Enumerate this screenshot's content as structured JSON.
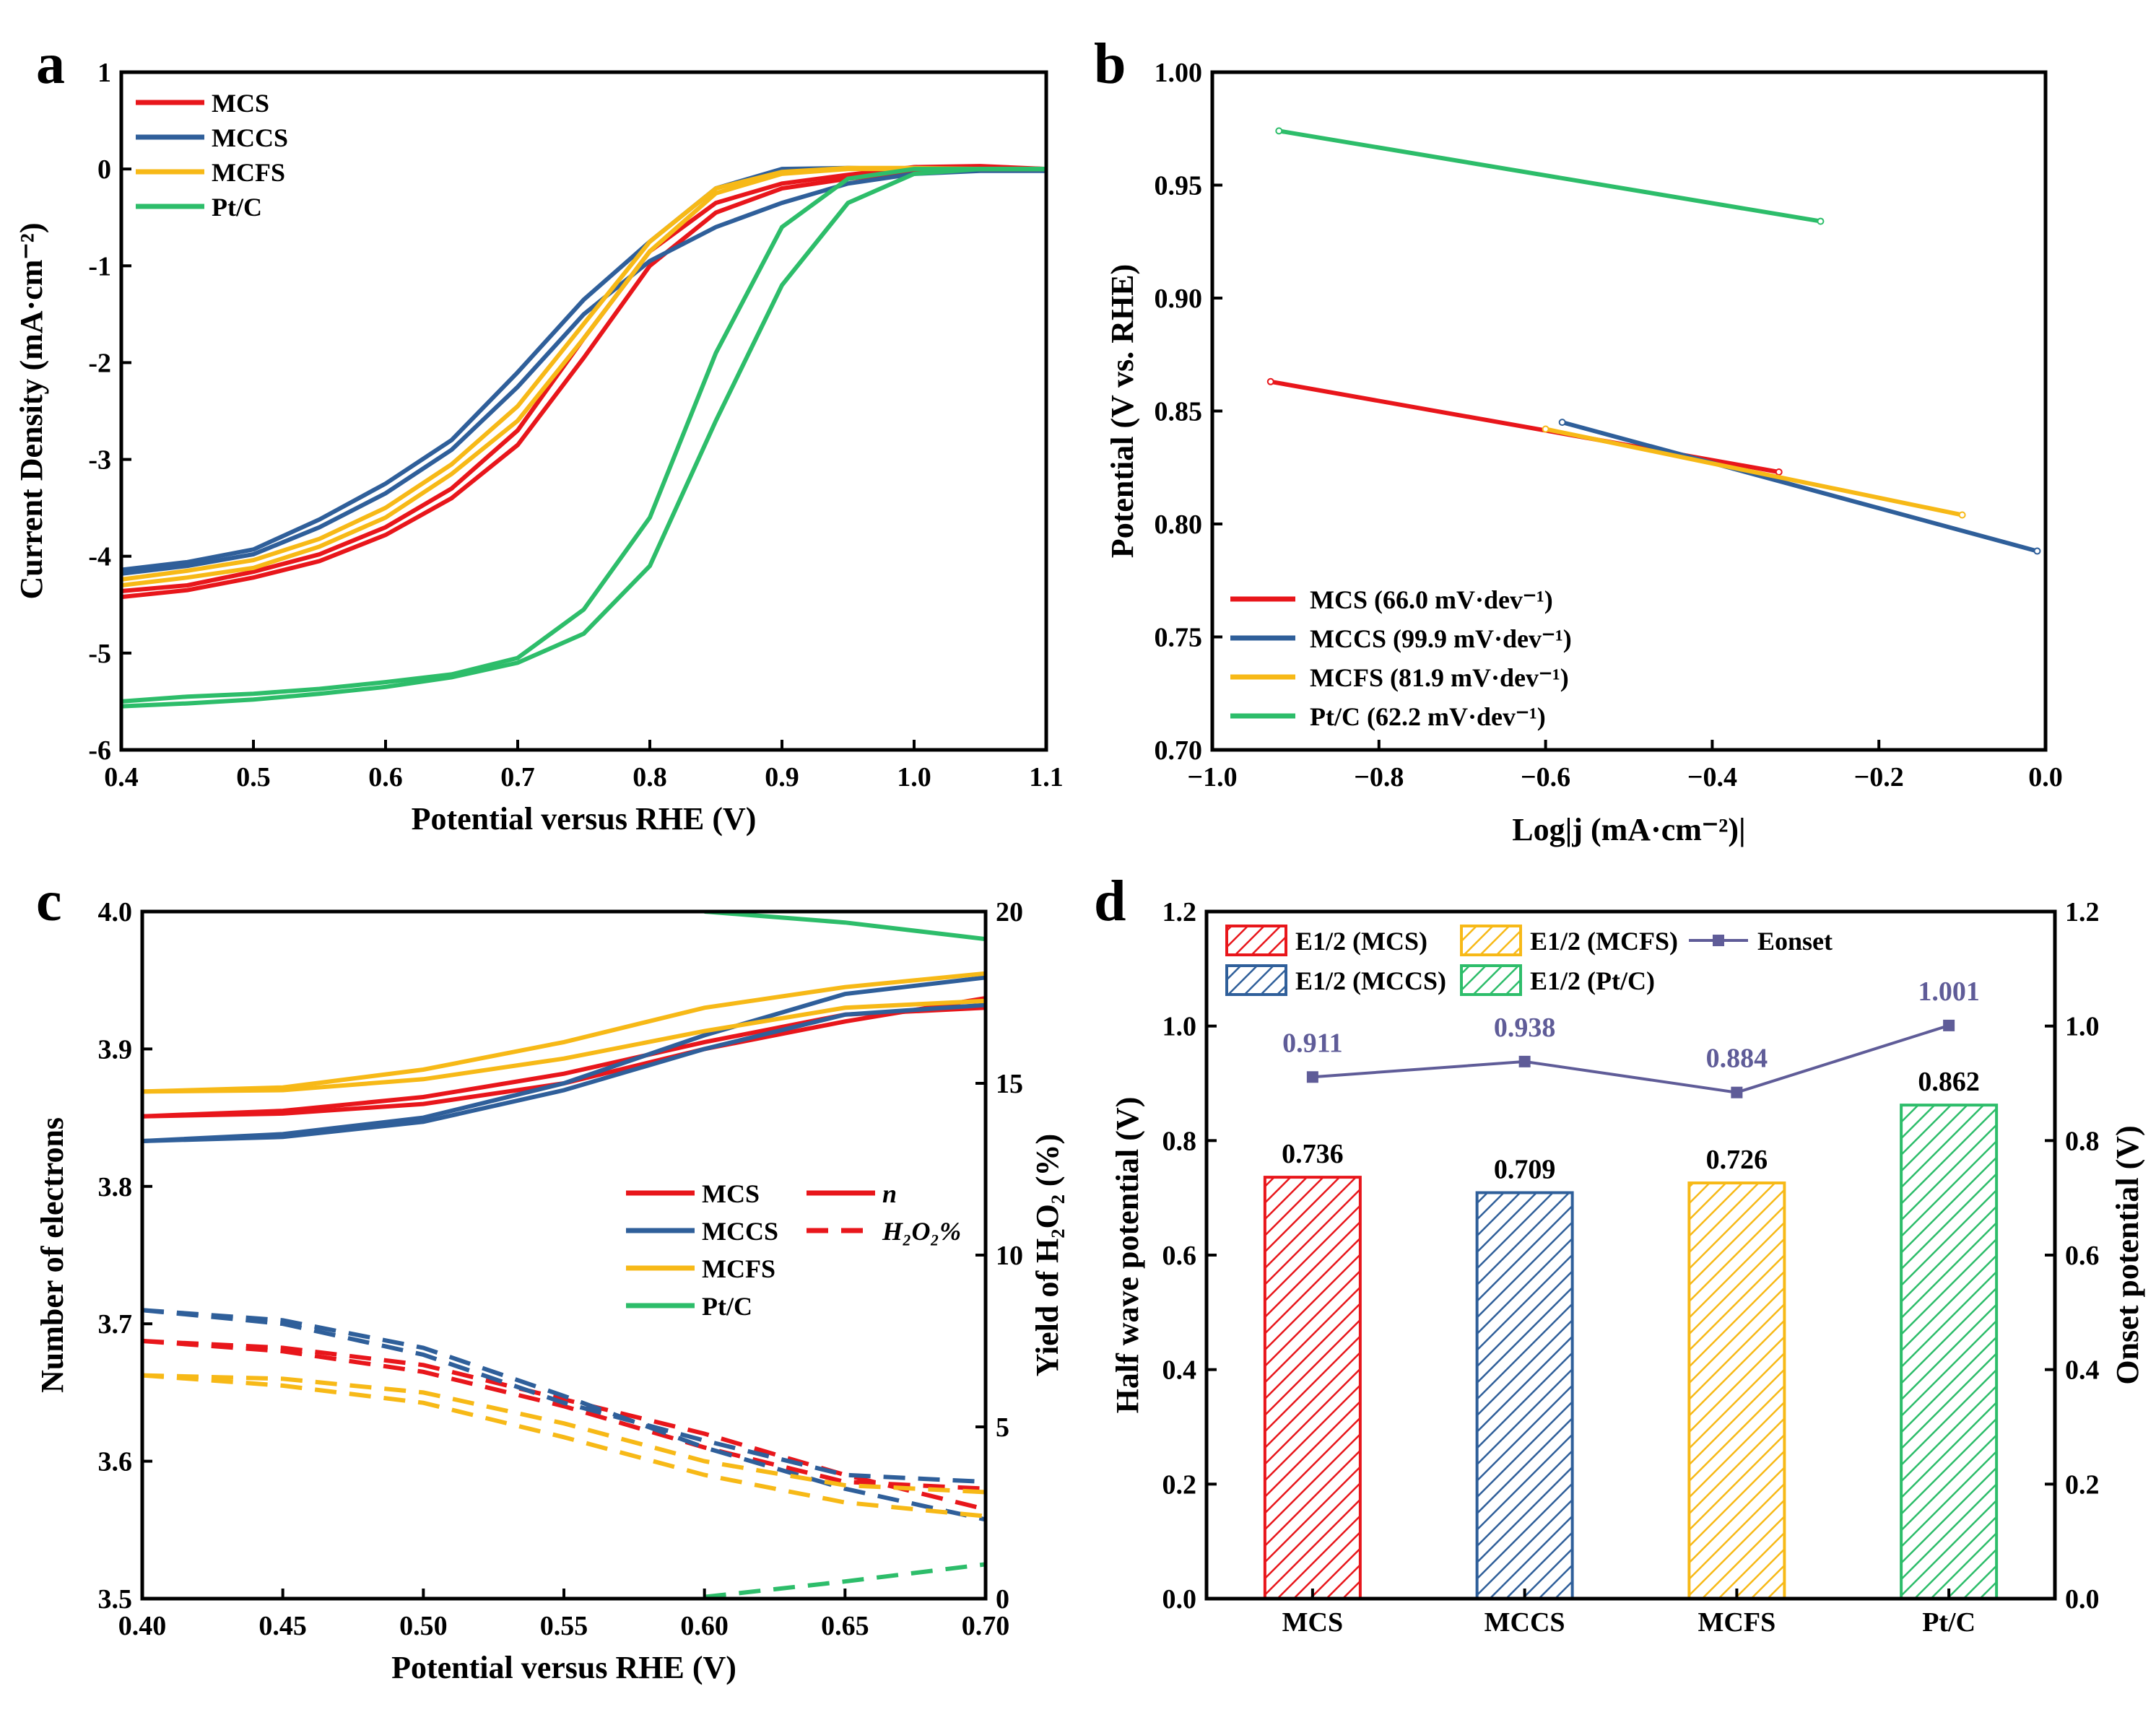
{
  "colors": {
    "MCS": "#e8161b",
    "MCCS": "#2f5f9a",
    "MCFS": "#f7b917",
    "PtC": "#2dbd6a",
    "onset": "#5f5c98"
  },
  "chart_data": [
    {
      "panel": "a",
      "type": "line",
      "xlabel": "Potential versus RHE (V)",
      "ylabel": "Current Density (mA·cm⁻²)",
      "xlim": [
        0.4,
        1.1
      ],
      "ylim": [
        -6,
        1
      ],
      "xticks": [
        "0.4",
        "0.5",
        "0.6",
        "0.7",
        "0.8",
        "0.9",
        "1.0",
        "1.1"
      ],
      "yticks": [
        "-6",
        "-5",
        "-4",
        "-3",
        "-2",
        "-1",
        "0",
        "1"
      ],
      "legend": "top-left",
      "series": [
        {
          "name": "MCS",
          "color": "MCS",
          "x": [
            0.4,
            0.45,
            0.5,
            0.55,
            0.6,
            0.65,
            0.7,
            0.75,
            0.8,
            0.85,
            0.9,
            0.95,
            1.0,
            1.05,
            1.1
          ],
          "y": [
            -4.42,
            -4.35,
            -4.22,
            -4.05,
            -3.78,
            -3.4,
            -2.85,
            -1.95,
            -1.0,
            -0.45,
            -0.2,
            -0.1,
            -0.03,
            0.02,
            0
          ],
          "y2": [
            -4.36,
            -4.3,
            -4.16,
            -3.98,
            -3.7,
            -3.3,
            -2.7,
            -1.75,
            -0.85,
            -0.35,
            -0.15,
            -0.06,
            0.02,
            0.03,
            0
          ]
        },
        {
          "name": "MCCS",
          "color": "MCCS",
          "x": [
            0.4,
            0.45,
            0.5,
            0.55,
            0.6,
            0.65,
            0.7,
            0.75,
            0.8,
            0.85,
            0.9,
            0.95,
            1.0,
            1.05,
            1.1
          ],
          "y": [
            -4.18,
            -4.1,
            -3.98,
            -3.7,
            -3.35,
            -2.9,
            -2.25,
            -1.5,
            -0.95,
            -0.6,
            -0.35,
            -0.15,
            -0.05,
            -0.02,
            -0.02
          ],
          "y2": [
            -4.14,
            -4.06,
            -3.93,
            -3.62,
            -3.25,
            -2.8,
            -2.1,
            -1.35,
            -0.75,
            -0.2,
            0,
            0.01,
            0,
            0,
            -0.02
          ]
        },
        {
          "name": "MCFS",
          "color": "MCFS",
          "x": [
            0.4,
            0.45,
            0.5,
            0.55,
            0.6,
            0.65,
            0.7,
            0.75,
            0.8,
            0.85,
            0.9,
            0.95,
            1.0,
            1.05,
            1.1
          ],
          "y": [
            -4.3,
            -4.22,
            -4.12,
            -3.9,
            -3.6,
            -3.15,
            -2.6,
            -1.75,
            -0.85,
            -0.25,
            -0.05,
            0,
            0,
            0,
            0
          ],
          "y2": [
            -4.24,
            -4.15,
            -4.04,
            -3.82,
            -3.5,
            -3.05,
            -2.45,
            -1.6,
            -0.75,
            -0.2,
            -0.03,
            0.01,
            0.01,
            0,
            0
          ]
        },
        {
          "name": "Pt/C",
          "color": "PtC",
          "x": [
            0.4,
            0.45,
            0.5,
            0.55,
            0.6,
            0.65,
            0.7,
            0.75,
            0.8,
            0.85,
            0.9,
            0.95,
            1.0,
            1.05,
            1.1
          ],
          "y": [
            -5.55,
            -5.52,
            -5.48,
            -5.42,
            -5.35,
            -5.25,
            -5.1,
            -4.8,
            -4.1,
            -2.6,
            -1.2,
            -0.35,
            -0.05,
            0,
            0
          ],
          "y2": [
            -5.5,
            -5.45,
            -5.42,
            -5.37,
            -5.3,
            -5.22,
            -5.05,
            -4.55,
            -3.6,
            -1.9,
            -0.6,
            -0.1,
            0,
            0,
            0
          ]
        }
      ]
    },
    {
      "panel": "b",
      "type": "line",
      "xlabel": "Log|j (mA·cm⁻²)|",
      "ylabel": "Potential (V vs. RHE)",
      "xlim": [
        -1.0,
        0.0
      ],
      "ylim": [
        0.7,
        1.0
      ],
      "xticks": [
        "−1.0",
        "−0.8",
        "−0.6",
        "−0.4",
        "−0.2",
        "0.0"
      ],
      "yticks": [
        "0.70",
        "0.75",
        "0.80",
        "0.85",
        "0.90",
        "0.95",
        "1.00"
      ],
      "legend": "bottom-left",
      "series": [
        {
          "name": "MCS (66.0 mV·dev⁻¹)",
          "color": "MCS",
          "x": [
            -0.93,
            -0.32
          ],
          "y": [
            0.863,
            0.823
          ]
        },
        {
          "name": "MCCS (99.9 mV·dev⁻¹)",
          "color": "MCCS",
          "x": [
            -0.58,
            -0.01
          ],
          "y": [
            0.845,
            0.788
          ]
        },
        {
          "name": "MCFS (81.9 mV·dev⁻¹)",
          "color": "MCFS",
          "x": [
            -0.6,
            -0.1
          ],
          "y": [
            0.842,
            0.804
          ]
        },
        {
          "name": "Pt/C (62.2 mV·dev⁻¹)",
          "color": "PtC",
          "x": [
            -0.92,
            -0.27
          ],
          "y": [
            0.974,
            0.934
          ]
        }
      ]
    },
    {
      "panel": "c",
      "type": "line",
      "xlabel": "Potential versus RHE (V)",
      "ylabel": "Number of electrons",
      "y2label": "Yield of H₂O₂ (%)",
      "xlim": [
        0.4,
        0.7
      ],
      "ylim": [
        3.5,
        4.0
      ],
      "y2lim": [
        0,
        20
      ],
      "xticks": [
        "0.40",
        "0.45",
        "0.50",
        "0.55",
        "0.60",
        "0.65",
        "0.70"
      ],
      "yticks": [
        "3.5",
        "3.6",
        "3.7",
        "3.8",
        "3.9",
        "4.0"
      ],
      "y2ticks": [
        "0",
        "5",
        "10",
        "15",
        "20"
      ],
      "legend": "center-right",
      "legend_styles": [
        "n",
        "H₂O₂%"
      ],
      "series": [
        {
          "name": "MCS",
          "color": "MCS",
          "x": [
            0.4,
            0.45,
            0.5,
            0.55,
            0.6,
            0.65,
            0.7
          ],
          "n": [
            3.851,
            3.853,
            3.86,
            3.875,
            3.9,
            3.92,
            3.937
          ],
          "n2": [
            3.851,
            3.855,
            3.865,
            3.882,
            3.905,
            3.925,
            3.93
          ],
          "h2o2": [
            7.5,
            7.3,
            6.8,
            5.8,
            4.8,
            3.6,
            2.6
          ],
          "h2o22": [
            7.5,
            7.2,
            6.6,
            5.6,
            4.4,
            3.4,
            3.2
          ]
        },
        {
          "name": "MCCS",
          "color": "MCCS",
          "x": [
            0.4,
            0.45,
            0.5,
            0.55,
            0.6,
            0.65,
            0.7
          ],
          "n": [
            3.833,
            3.838,
            3.85,
            3.875,
            3.91,
            3.94,
            3.952
          ],
          "n2": [
            3.833,
            3.836,
            3.847,
            3.87,
            3.9,
            3.925,
            3.932
          ],
          "h2o2": [
            8.4,
            8.1,
            7.3,
            5.9,
            4.4,
            3.2,
            2.3
          ],
          "h2o22": [
            8.4,
            8.0,
            7.1,
            5.7,
            4.6,
            3.6,
            3.4
          ]
        },
        {
          "name": "MCFS",
          "color": "MCFS",
          "x": [
            0.4,
            0.45,
            0.5,
            0.55,
            0.6,
            0.65,
            0.7
          ],
          "n": [
            3.869,
            3.872,
            3.885,
            3.905,
            3.93,
            3.945,
            3.955
          ],
          "n2": [
            3.869,
            3.87,
            3.878,
            3.893,
            3.913,
            3.93,
            3.935
          ],
          "h2o2": [
            6.5,
            6.2,
            5.7,
            4.7,
            3.6,
            2.8,
            2.4
          ],
          "h2o22": [
            6.5,
            6.4,
            6.0,
            5.1,
            4.0,
            3.3,
            3.1
          ]
        },
        {
          "name": "Pt/C",
          "color": "PtC",
          "x": [
            0.6,
            0.65,
            0.7
          ],
          "n": [
            4.0,
            3.992,
            3.98
          ],
          "h2o2": [
            0.05,
            0.5,
            1.0
          ]
        }
      ]
    },
    {
      "panel": "d",
      "type": "bar",
      "ylabel": "Half wave potential (V)",
      "y2label": "Onset potential (V)",
      "ylim": [
        0,
        1.2
      ],
      "y2lim": [
        0,
        1.2
      ],
      "yticks": [
        "0.0",
        "0.2",
        "0.4",
        "0.6",
        "0.8",
        "1.0",
        "1.2"
      ],
      "categories": [
        "MCS",
        "MCCS",
        "MCFS",
        "Pt/C"
      ],
      "legend": "top-left",
      "legend_entries": [
        "E1/2 (MCS)",
        "E1/2 (MCCS)",
        "E1/2 (MCFS)",
        "E1/2 (Pt/C)",
        "Eonset"
      ],
      "series": [
        {
          "name": "E1/2",
          "values": [
            0.736,
            0.709,
            0.726,
            0.862
          ],
          "labels": [
            "0.736",
            "0.709",
            "0.726",
            "0.862"
          ],
          "colors": [
            "MCS",
            "MCCS",
            "MCFS",
            "PtC"
          ]
        },
        {
          "name": "Eonset",
          "values": [
            0.911,
            0.938,
            0.884,
            1.001
          ],
          "labels": [
            "0.911",
            "0.938",
            "0.884",
            "1.001"
          ],
          "color": "onset"
        }
      ]
    }
  ]
}
